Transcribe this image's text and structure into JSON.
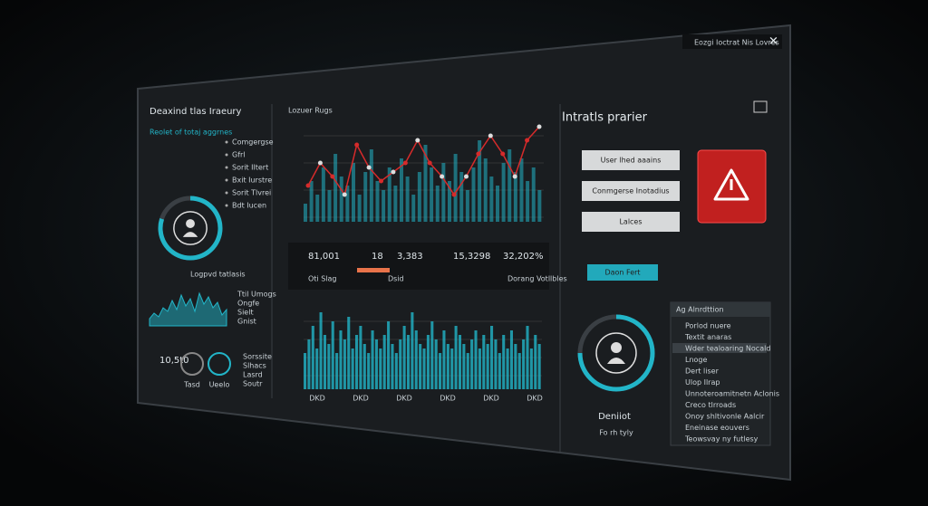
{
  "window": {
    "title": "Eozgi Ioctrat Nis Lovres"
  },
  "left": {
    "title": "Deaxind tlas Iraeury",
    "subtitle": "Reolet of totaj aggrnes",
    "items": [
      "Comgergse",
      "Gfrl",
      "Sorit Iltert",
      "Bxit Iurstre",
      "Sorit Tlvrei",
      "Bdt Iucen"
    ],
    "donut_label": "Logpvd tatlasis",
    "donut_share": 80,
    "sparkline": [
      20,
      35,
      25,
      50,
      40,
      70,
      45,
      85,
      55,
      75,
      40,
      90,
      60,
      80,
      50,
      65,
      30,
      45
    ],
    "legend": [
      "Ttil Umogs",
      "Ongfe",
      "Sielt",
      "Gnist"
    ],
    "small_value": "10,5t0",
    "small_labels": [
      "Tasd",
      "Ueelo"
    ],
    "small_legend": [
      "Sorssite",
      "Slhacs",
      "Lasrd",
      "Soutr"
    ]
  },
  "center": {
    "header": "Lozuer Rugs",
    "line": [
      35,
      60,
      45,
      25,
      80,
      55,
      40,
      50,
      60,
      85,
      60,
      45,
      25,
      45,
      70,
      90,
      70,
      45,
      85,
      100
    ],
    "bars_top": [
      20,
      45,
      30,
      60,
      35,
      75,
      50,
      40,
      65,
      30,
      55,
      80,
      45,
      35,
      60,
      40,
      70,
      50,
      30,
      55,
      85,
      60,
      40,
      65,
      45,
      75,
      55,
      35,
      60,
      90,
      70,
      50,
      40,
      65,
      80,
      55,
      70,
      45,
      60,
      35
    ],
    "metrics": [
      "81,001",
      "18",
      "3,383",
      "15,3298",
      "32,202%"
    ],
    "metric_labels": [
      "Oti Slag",
      "Dsid",
      "Dorang Votllbles"
    ],
    "bars_bottom": [
      40,
      55,
      70,
      45,
      85,
      60,
      50,
      75,
      40,
      65,
      55,
      80,
      45,
      60,
      70,
      50,
      40,
      65,
      55,
      45,
      60,
      75,
      50,
      40,
      55,
      70,
      60,
      85,
      65,
      50,
      45,
      60,
      75,
      55,
      40,
      65,
      50,
      45,
      70,
      60,
      50,
      40,
      55,
      65,
      45,
      60,
      50,
      70,
      55,
      40,
      60,
      45,
      65,
      50,
      40,
      55,
      70,
      45,
      60,
      50
    ],
    "bottom_axis": [
      "DKD",
      "DKD",
      "DKD",
      "DKD",
      "DKD",
      "DKD"
    ]
  },
  "right": {
    "title": "Intratls prarier",
    "buttons": [
      "User lhed aaains",
      "Conmgerse Inotadius",
      "Lalces"
    ],
    "action": "Daon Fert",
    "donut_share": 75,
    "user_name": "Deniiot",
    "user_sub": "Fo rh tyly",
    "list_title": "Ag Alnrdttion",
    "list": [
      "Porlod nuere",
      "Textit anaras",
      "Wder tealoaring Nocald",
      "Lnoge",
      "Dert liser",
      "Ulop Ilrap",
      "Unnoteroamitnetn Aclonis",
      "Creco tlrroads",
      "Onoy shltivonle Aalcir",
      "Eneinase eouvers",
      "Teowsvay ny futlesy"
    ]
  }
}
